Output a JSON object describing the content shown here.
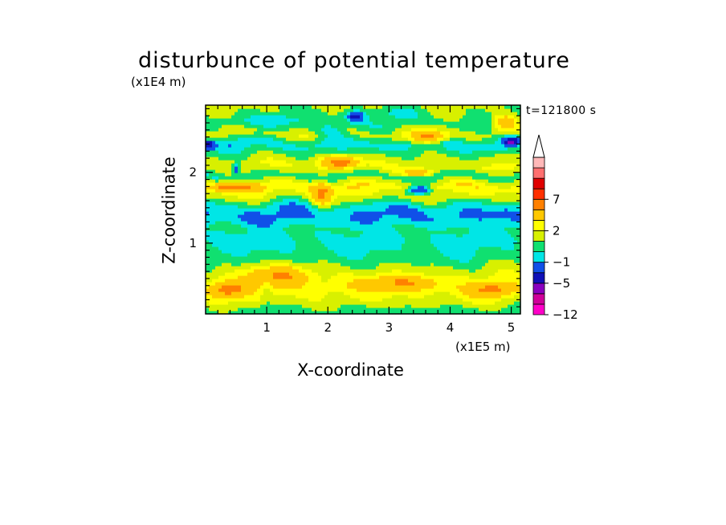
{
  "chart_data": {
    "type": "heatmap",
    "title": "disturbunce of potential temperature",
    "xlabel": "X-coordinate",
    "ylabel": "Z-coordinate",
    "x_unit": "(x1E5 m)",
    "y_unit": "(x1E4 m)",
    "time_label": "t=121800 s",
    "xlim": [
      0,
      5.15
    ],
    "ylim": [
      0,
      2.95
    ],
    "xticks": [
      1,
      2,
      3,
      4,
      5
    ],
    "yticks": [
      1,
      2
    ],
    "colorbar": {
      "levels": [
        -12,
        -9,
        -7,
        -5,
        -3,
        -1,
        0,
        1,
        2,
        3,
        5,
        7,
        9,
        12
      ],
      "colors": [
        "#ff00c8",
        "#d0009a",
        "#8a00c0",
        "#1010b8",
        "#1050e8",
        "#00e6e6",
        "#10e070",
        "#d8f000",
        "#ffff00",
        "#ffc800",
        "#ff8000",
        "#ff3000",
        "#e00000",
        "#ff7070",
        "#ffb8b8"
      ],
      "tick_labels": [
        {
          "value": 7,
          "label": "7"
        },
        {
          "value": 2,
          "label": "2"
        },
        {
          "value": -1,
          "label": "−1"
        },
        {
          "value": -5,
          "label": "−5"
        },
        {
          "value": -12,
          "label": "−12"
        }
      ],
      "extend_top": true
    },
    "bands": [
      {
        "z": 0.05,
        "value": 0.5
      },
      {
        "z": 0.15,
        "value": 1.5
      },
      {
        "z": 0.35,
        "value": 2.6
      },
      {
        "z": 0.55,
        "value": 1.8
      },
      {
        "z": 0.75,
        "value": 0.6
      },
      {
        "z": 0.9,
        "value": 0.0
      },
      {
        "z": 1.05,
        "value": -0.3
      },
      {
        "z": 1.2,
        "value": 0.1
      },
      {
        "z": 1.38,
        "value": -1.2
      },
      {
        "z": 1.5,
        "value": -0.8
      },
      {
        "z": 1.65,
        "value": 1.5
      },
      {
        "z": 1.8,
        "value": 2.8
      },
      {
        "z": 1.95,
        "value": 0.2
      },
      {
        "z": 2.1,
        "value": 2.0
      },
      {
        "z": 2.25,
        "value": 0.9
      },
      {
        "z": 2.4,
        "value": -0.6
      },
      {
        "z": 2.55,
        "value": 1.6
      },
      {
        "z": 2.7,
        "value": 0.4
      },
      {
        "z": 2.9,
        "value": 1.2
      }
    ],
    "features": [
      {
        "x": 3.5,
        "z": 1.75,
        "sx": 0.2,
        "sz": 0.06,
        "value": -5.5
      },
      {
        "x": 2.45,
        "z": 2.8,
        "sx": 0.14,
        "sz": 0.07,
        "value": -4.5
      },
      {
        "x": 5.0,
        "z": 2.45,
        "sx": 0.12,
        "sz": 0.06,
        "value": -5.5
      },
      {
        "x": 0.05,
        "z": 2.4,
        "sx": 0.1,
        "sz": 0.06,
        "value": -5.0
      },
      {
        "x": 0.5,
        "z": 2.05,
        "sx": 0.05,
        "sz": 0.06,
        "value": -5.0
      },
      {
        "x": 2.2,
        "z": 2.15,
        "sx": 0.3,
        "sz": 0.09,
        "value": 4.5
      },
      {
        "x": 3.65,
        "z": 2.5,
        "sx": 0.28,
        "sz": 0.08,
        "value": 5.0
      },
      {
        "x": 3.5,
        "z": 2.0,
        "sx": 0.25,
        "sz": 0.05,
        "value": 4.0
      },
      {
        "x": 0.45,
        "z": 1.8,
        "sx": 0.35,
        "sz": 0.06,
        "value": 4.5
      },
      {
        "x": 1.9,
        "z": 1.7,
        "sx": 0.15,
        "sz": 0.2,
        "value": 3.5
      },
      {
        "x": 4.9,
        "z": 2.72,
        "sx": 0.2,
        "sz": 0.1,
        "value": 4.0
      },
      {
        "x": 1.2,
        "z": 0.55,
        "sx": 0.5,
        "sz": 0.15,
        "value": 3.5
      },
      {
        "x": 0.35,
        "z": 0.35,
        "sx": 0.3,
        "sz": 0.12,
        "value": 3.5
      },
      {
        "x": 3.2,
        "z": 0.45,
        "sx": 0.6,
        "sz": 0.1,
        "value": 3.0
      },
      {
        "x": 4.7,
        "z": 0.35,
        "sx": 0.35,
        "sz": 0.1,
        "value": 3.2
      },
      {
        "x": 1.0,
        "z": 0.4,
        "sx": 0.1,
        "sz": 0.25,
        "value": -1.2
      },
      {
        "x": 1.9,
        "z": 2.85,
        "sx": 0.5,
        "sz": 0.12,
        "value": -0.3
      },
      {
        "x": 3.2,
        "z": 2.85,
        "sx": 0.3,
        "sz": 0.08,
        "value": -1.5
      },
      {
        "x": 1.15,
        "z": 2.75,
        "sx": 0.4,
        "sz": 0.08,
        "value": -1.4
      },
      {
        "x": 2.05,
        "z": 2.6,
        "sx": 0.25,
        "sz": 0.08,
        "value": -2.0
      }
    ]
  }
}
